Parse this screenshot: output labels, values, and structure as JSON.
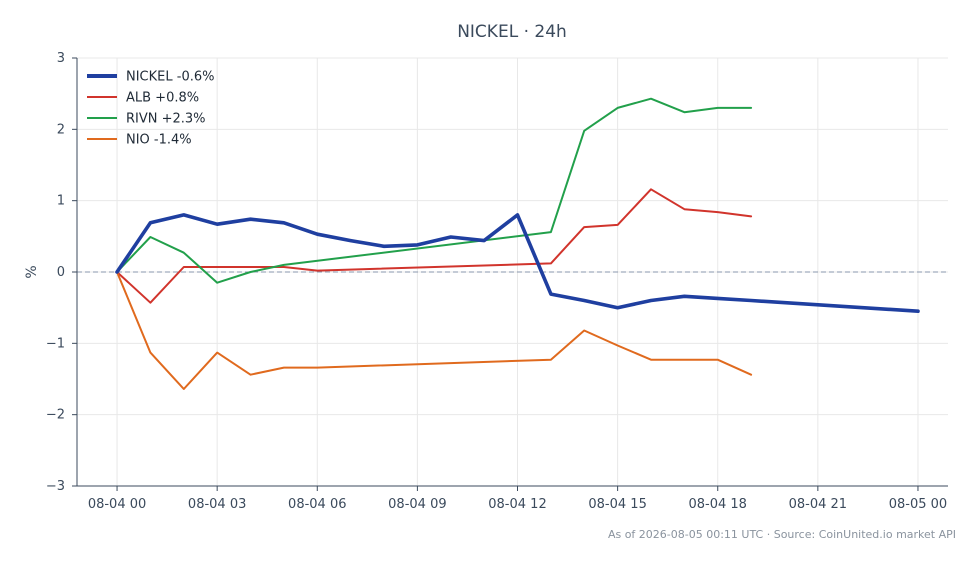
{
  "chart_data": {
    "type": "line",
    "title": "NICKEL · 24h",
    "ylabel": "%",
    "xlabel": "",
    "ylim": [
      -3,
      3
    ],
    "xlim": [
      -1.2,
      24.9
    ],
    "yticks": [
      3,
      2,
      1,
      0,
      -1,
      -2,
      -3
    ],
    "ytick_labels": [
      "3",
      "2",
      "1",
      "0",
      "−1",
      "−2",
      "−3"
    ],
    "xticks": [
      0,
      3,
      6,
      9,
      12,
      15,
      18,
      21,
      24
    ],
    "xtick_labels": [
      "08-04 00",
      "08-04 03",
      "08-04 06",
      "08-04 09",
      "08-04 12",
      "08-04 15",
      "08-04 18",
      "08-04 21",
      "08-05 00"
    ],
    "zero_line": true,
    "grid": true,
    "legend_position": "top-left",
    "series": [
      {
        "name": "NICKEL -0.6%",
        "color": "#1f3fa0",
        "bold": true,
        "x": [
          0,
          1,
          2,
          3,
          4,
          5,
          6,
          7,
          8,
          9,
          10,
          11,
          12,
          13,
          14,
          15,
          16,
          17,
          18,
          19,
          24
        ],
        "values": [
          0.0,
          0.69,
          0.8,
          0.67,
          0.74,
          0.69,
          0.53,
          0.44,
          0.36,
          0.38,
          0.49,
          0.44,
          0.8,
          -0.31,
          -0.4,
          -0.5,
          -0.4,
          -0.34,
          -0.37,
          -0.4,
          -0.55
        ]
      },
      {
        "name": "ALB +0.8%",
        "color": "#d1342c",
        "bold": false,
        "x": [
          0,
          1,
          2,
          3,
          4,
          5,
          6,
          13,
          14,
          15,
          16,
          17,
          18,
          19
        ],
        "values": [
          0.0,
          -0.43,
          0.07,
          0.07,
          0.07,
          0.07,
          0.02,
          0.12,
          0.63,
          0.66,
          1.16,
          0.88,
          0.84,
          0.78
        ]
      },
      {
        "name": "RIVN +2.3%",
        "color": "#22a04b",
        "bold": false,
        "x": [
          0,
          1,
          2,
          3,
          4,
          5,
          13,
          14,
          15,
          16,
          17,
          18,
          19
        ],
        "values": [
          0.0,
          0.49,
          0.27,
          -0.15,
          0.0,
          0.1,
          0.56,
          1.98,
          2.3,
          2.43,
          2.24,
          2.3,
          2.3
        ]
      },
      {
        "name": "NIO -1.4%",
        "color": "#e06a1e",
        "bold": false,
        "x": [
          0,
          1,
          2,
          3,
          4,
          5,
          6,
          13,
          14,
          15,
          16,
          17,
          18,
          19
        ],
        "values": [
          0.0,
          -1.13,
          -1.64,
          -1.13,
          -1.44,
          -1.34,
          -1.34,
          -1.23,
          -0.82,
          -1.03,
          -1.23,
          -1.23,
          -1.23,
          -1.44
        ]
      }
    ]
  },
  "footer": "As of 2026-08-05 00:11 UTC · Source: CoinUnited.io market API"
}
